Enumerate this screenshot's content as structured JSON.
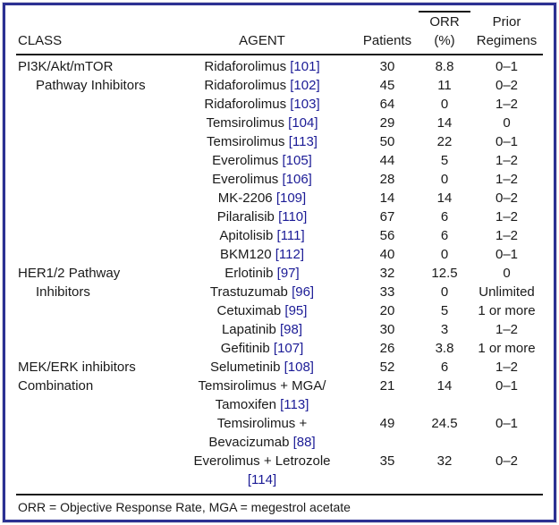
{
  "colors": {
    "frame": "#2c3192",
    "ref": "#1b1b96",
    "text": "#1a1a1a",
    "rule": "#1a1a1a"
  },
  "header": {
    "class_label": "CLASS",
    "agent_label": "AGENT",
    "patients_label": "Patients",
    "orr_line1": "ORR",
    "orr_line2": "(%)",
    "prior_line1": "Prior",
    "prior_line2": "Regimens"
  },
  "rows": [
    {
      "cls": "PI3K/Akt/mTOR",
      "agent": [
        {
          "text": "Ridaforolimus",
          "ref": "[101]"
        }
      ],
      "patients": "30",
      "orr": "8.8",
      "prior": "0–1"
    },
    {
      "cls": "Pathway Inhibitors",
      "cls_indent": true,
      "agent": [
        {
          "text": "Ridaforolimus",
          "ref": "[102]"
        }
      ],
      "patients": "45",
      "orr": "11",
      "prior": "0–2"
    },
    {
      "agent": [
        {
          "text": "Ridaforolimus",
          "ref": "[103]"
        }
      ],
      "patients": "64",
      "orr": "0",
      "prior": "1–2"
    },
    {
      "agent": [
        {
          "text": "Temsirolimus",
          "ref": "[104]"
        }
      ],
      "patients": "29",
      "orr": "14",
      "prior": "0"
    },
    {
      "agent": [
        {
          "text": "Temsirolimus",
          "ref": "[113]"
        }
      ],
      "patients": "50",
      "orr": "22",
      "prior": "0–1"
    },
    {
      "agent": [
        {
          "text": "Everolimus",
          "ref": "[105]"
        }
      ],
      "patients": "44",
      "orr": "5",
      "prior": "1–2"
    },
    {
      "agent": [
        {
          "text": "Everolimus",
          "ref": "[106]"
        }
      ],
      "patients": "28",
      "orr": "0",
      "prior": "1–2"
    },
    {
      "agent": [
        {
          "text": "MK-2206",
          "ref": "[109]"
        }
      ],
      "patients": "14",
      "orr": "14",
      "prior": "0–2"
    },
    {
      "agent": [
        {
          "text": "Pilaralisib",
          "ref": "[110]"
        }
      ],
      "patients": "67",
      "orr": "6",
      "prior": "1–2"
    },
    {
      "agent": [
        {
          "text": "Apitolisib",
          "ref": "[111]"
        }
      ],
      "patients": "56",
      "orr": "6",
      "prior": "1–2"
    },
    {
      "agent": [
        {
          "text": "BKM120",
          "ref": "[112]"
        }
      ],
      "patients": "40",
      "orr": "0",
      "prior": "0–1"
    },
    {
      "cls": "HER1/2 Pathway",
      "agent": [
        {
          "text": "Erlotinib",
          "ref": "[97]"
        }
      ],
      "patients": "32",
      "orr": "12.5",
      "prior": "0"
    },
    {
      "cls": "Inhibitors",
      "cls_indent": true,
      "agent": [
        {
          "text": "Trastuzumab",
          "ref": "[96]"
        }
      ],
      "patients": "33",
      "orr": "0",
      "prior": "Unlimited"
    },
    {
      "agent": [
        {
          "text": "Cetuximab",
          "ref": "[95]"
        }
      ],
      "patients": "20",
      "orr": "5",
      "prior": "1 or more"
    },
    {
      "agent": [
        {
          "text": "Lapatinib",
          "ref": "[98]"
        }
      ],
      "patients": "30",
      "orr": "3",
      "prior": "1–2"
    },
    {
      "agent": [
        {
          "text": "Gefitinib",
          "ref": "[107]"
        }
      ],
      "patients": "26",
      "orr": "3.8",
      "prior": "1 or more"
    },
    {
      "cls": "MEK/ERK inhibitors",
      "agent": [
        {
          "text": "Selumetinib",
          "ref": "[108]"
        }
      ],
      "patients": "52",
      "orr": "6",
      "prior": "1–2"
    },
    {
      "cls": "Combination",
      "agent": [
        {
          "text": "Temsirolimus + MGA/"
        },
        {
          "text": "Tamoxifen",
          "ref": "[113]"
        }
      ],
      "patients": "21",
      "orr": "14",
      "prior": "0–1"
    },
    {
      "agent": [
        {
          "text": "Temsirolimus +"
        },
        {
          "text": "Bevacizumab",
          "ref": "[88]"
        }
      ],
      "patients": "49",
      "orr": "24.5",
      "prior": "0–1"
    },
    {
      "agent": [
        {
          "text": "Everolimus + Letrozole"
        },
        {
          "ref": "[114]"
        }
      ],
      "patients": "35",
      "orr": "32",
      "prior": "0–2"
    }
  ],
  "footnote": "ORR = Objective Response Rate, MGA = megestrol acetate"
}
